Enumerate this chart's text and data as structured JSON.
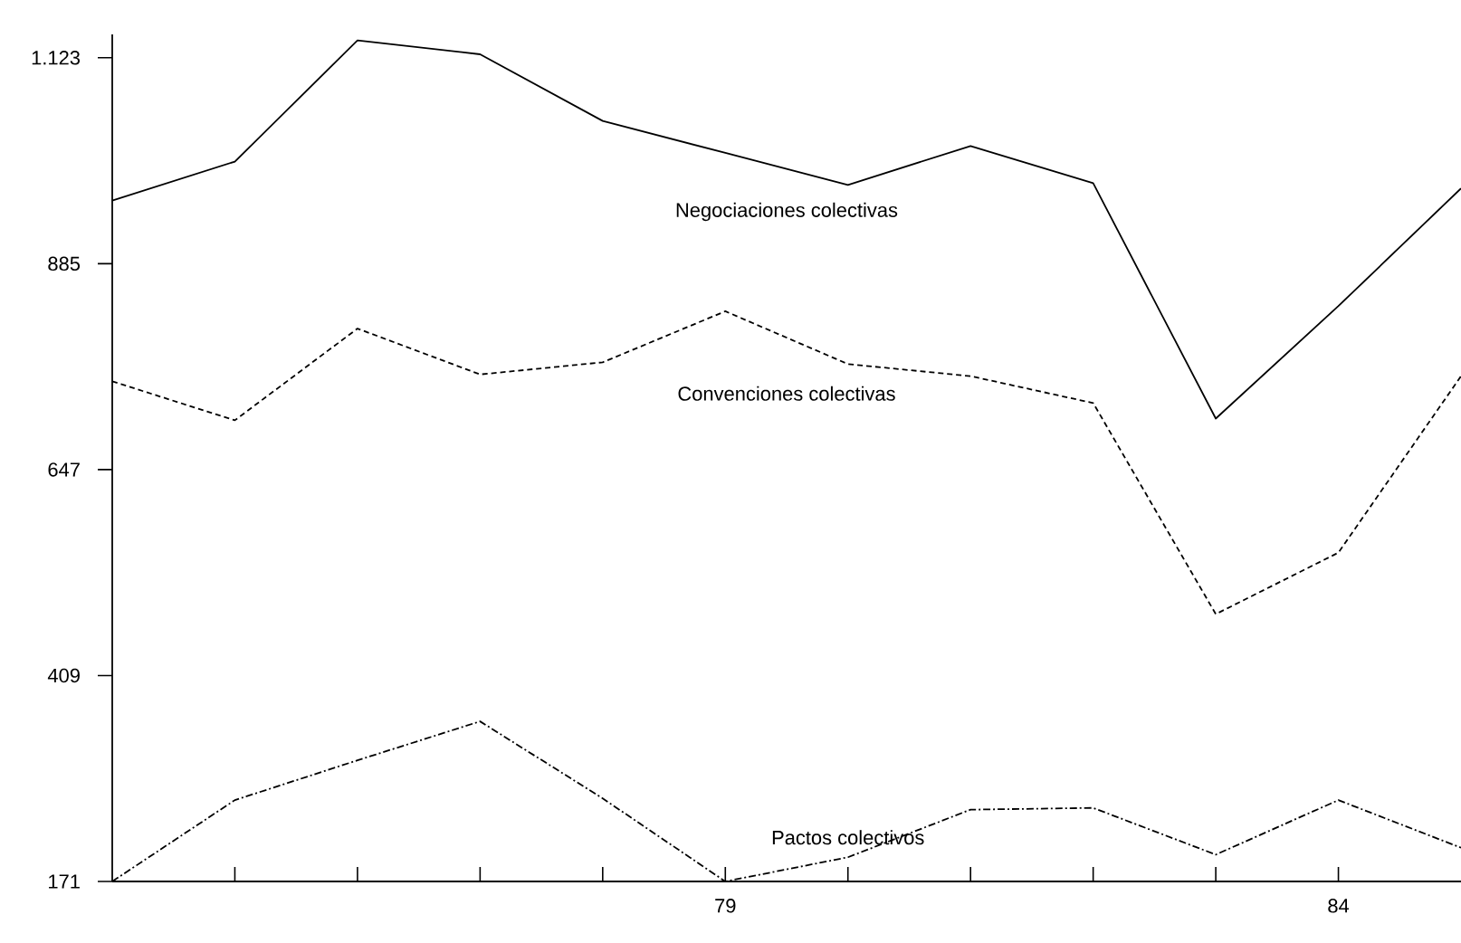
{
  "chart_data": {
    "type": "line",
    "x": [
      74,
      75,
      76,
      77,
      78,
      79,
      80,
      81,
      82,
      83,
      84,
      85
    ],
    "series": [
      {
        "name": "Negociaciones colectivas",
        "color": "#000000",
        "line_style": "solid",
        "values": [
          958,
          1003,
          1143,
          1127,
          1050,
          1013,
          976,
          1021,
          978,
          706,
          836,
          972
        ]
      },
      {
        "name": "Convenciones colectivas",
        "color": "#000000",
        "line_style": "dashed",
        "values": [
          749,
          704,
          810,
          757,
          771,
          830,
          769,
          755,
          724,
          480,
          551,
          755
        ]
      },
      {
        "name": "Pactos colectivos",
        "color": "#000000",
        "line_style": "dashdot",
        "values": [
          171,
          265,
          311,
          356,
          267,
          171,
          199,
          254,
          256,
          202,
          265,
          210
        ]
      }
    ],
    "xlim": [
      74,
      85
    ],
    "xticks": [
      {
        "value": 75,
        "label": null
      },
      {
        "value": 76,
        "label": null
      },
      {
        "value": 77,
        "label": null
      },
      {
        "value": 78,
        "label": null
      },
      79,
      {
        "value": 80,
        "label": null
      },
      {
        "value": 81,
        "label": null
      },
      {
        "value": 82,
        "label": null
      },
      {
        "value": 83,
        "label": null
      },
      84
    ],
    "ylim": [
      171,
      1150
    ],
    "yticks": [
      171,
      409,
      647,
      885,
      {
        "value": 1123,
        "label": "1.123"
      }
    ],
    "grid": false,
    "legend": false
  }
}
